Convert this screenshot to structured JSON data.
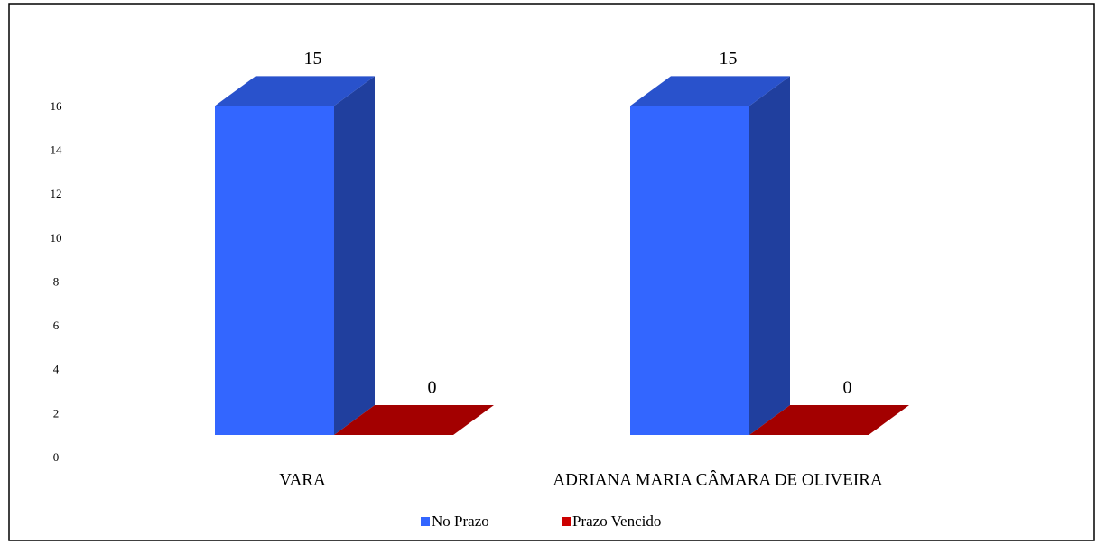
{
  "chart_data": {
    "type": "bar3d",
    "categories": [
      "VARA",
      "ADRIANA MARIA CÂMARA DE OLIVEIRA"
    ],
    "series": [
      {
        "name": "No Prazo",
        "color": "#3366ff",
        "values": [
          15,
          15
        ]
      },
      {
        "name": "Prazo Vencido",
        "color": "#cc0000",
        "values": [
          0,
          0
        ]
      }
    ],
    "ylim": [
      0,
      16
    ],
    "yticks": [
      0,
      2,
      4,
      6,
      8,
      10,
      12,
      14,
      16
    ],
    "legend": "bottom"
  }
}
